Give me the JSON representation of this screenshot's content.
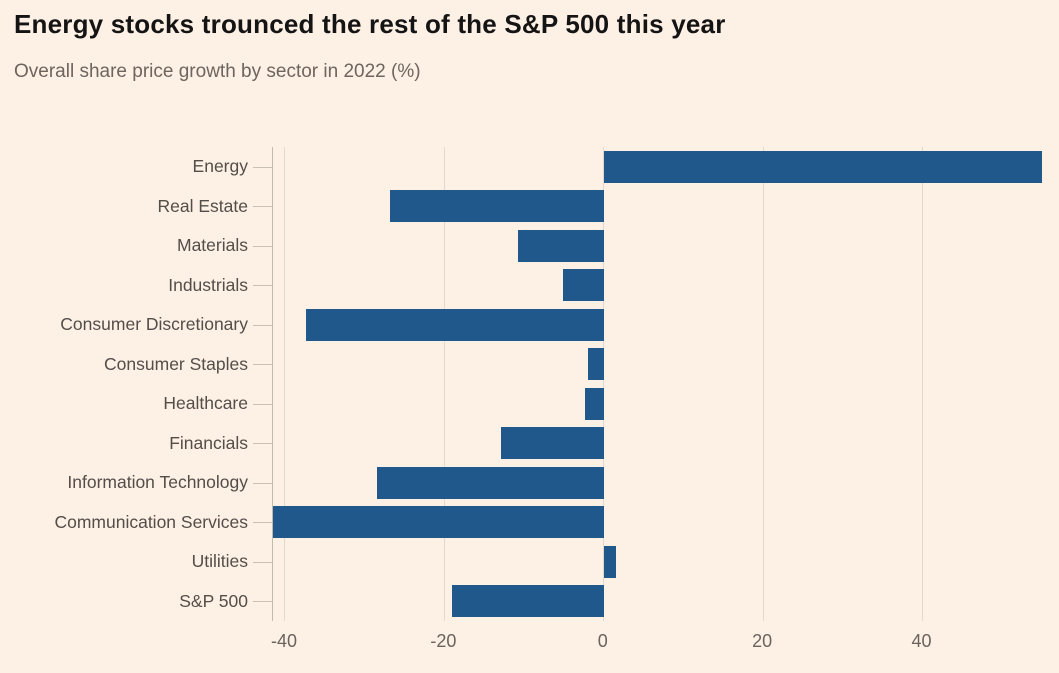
{
  "chart_data": {
    "type": "bar",
    "orientation": "horizontal",
    "title": "Energy stocks trounced the rest of the S&P 500 this year",
    "subtitle": "Overall share price growth by sector in 2022 (%)",
    "categories": [
      "Energy",
      "Real Estate",
      "Materials",
      "Industrials",
      "Consumer Discretionary",
      "Consumer Staples",
      "Healthcare",
      "Financials",
      "Information Technology",
      "Communication Services",
      "Utilities",
      "S&P 500"
    ],
    "values": [
      55,
      -26.8,
      -10.7,
      -5.1,
      -37.3,
      -2,
      -2.4,
      -12.9,
      -28.4,
      -41.5,
      1.5,
      -19
    ],
    "xlabel": "",
    "ylabel": "",
    "xlim": [
      -41.5,
      55
    ],
    "x_ticks": [
      -40,
      -20,
      0,
      20,
      40
    ],
    "x_tick_labels": [
      "-40",
      "-20",
      "0",
      "20",
      "40"
    ],
    "grid": "vertical-gridlines",
    "legend": "none",
    "colors": {
      "bar": "#20588c",
      "background": "#fdf0e5",
      "title": "#151414",
      "subtitle": "#6e655e",
      "category_label": "#544e49",
      "tick_label": "#6b635c",
      "axis_line": "#c2b9af",
      "gridline": "#e3d8cd"
    }
  }
}
